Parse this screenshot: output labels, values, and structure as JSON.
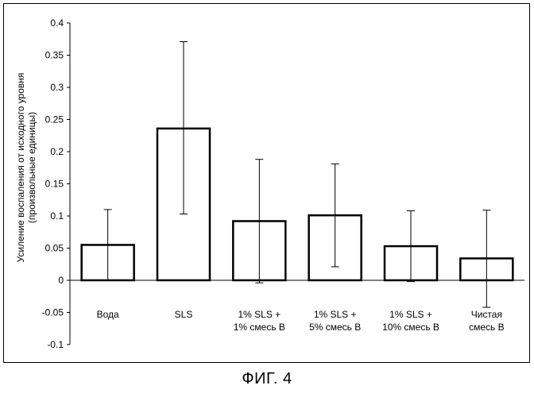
{
  "caption": "ФИГ. 4",
  "chart_data": {
    "type": "bar",
    "title": "",
    "xlabel": "",
    "ylabel": "Усиление воспаления от исходного уровня (произвольные единицы)",
    "ylabel_lines": [
      "Усиление воспаления от исходного уровня",
      "(произвольные единицы)"
    ],
    "ylim": [
      -0.1,
      0.4
    ],
    "yticks": [
      "-0.1",
      "-0.05",
      "0",
      "0.05",
      "0.1",
      "0.15",
      "0.2",
      "0.25",
      "0.3",
      "0.35",
      "0.4"
    ],
    "ytick_values": [
      -0.1,
      -0.05,
      0,
      0.05,
      0.1,
      0.15,
      0.2,
      0.25,
      0.3,
      0.35,
      0.4
    ],
    "grid": false,
    "categories": [
      [
        "Вода"
      ],
      [
        "SLS"
      ],
      [
        "1% SLS +",
        "1% смесь B"
      ],
      [
        "1% SLS +",
        "5% смесь B"
      ],
      [
        "1% SLS +",
        "10% смесь B"
      ],
      [
        "Чистая",
        "смесь B"
      ]
    ],
    "values": [
      0.055,
      0.236,
      0.092,
      0.101,
      0.053,
      0.034
    ],
    "error_low": [
      0.0,
      0.103,
      -0.004,
      0.021,
      -0.002,
      -0.042
    ],
    "error_high": [
      0.11,
      0.371,
      0.188,
      0.181,
      0.108,
      0.109
    ],
    "bar_color": "#ffffff",
    "edge_color": "#000000"
  }
}
